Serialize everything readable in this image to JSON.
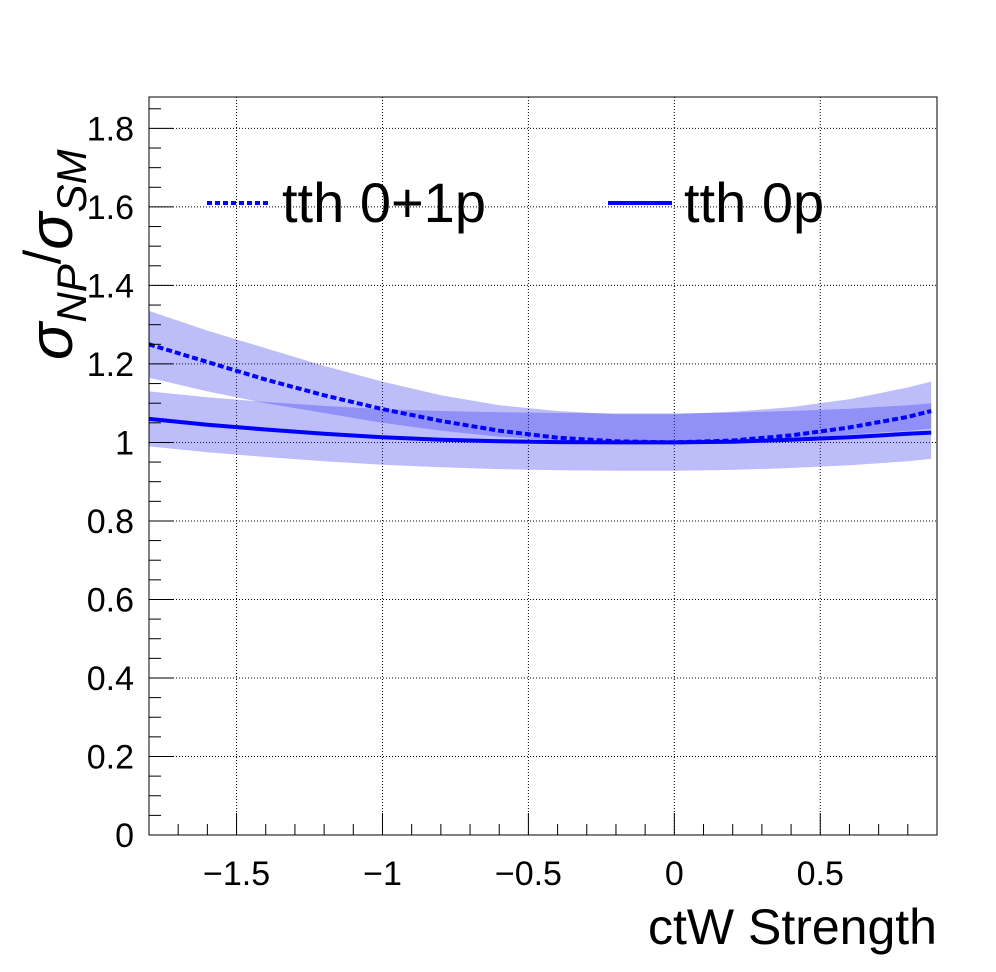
{
  "chart_data": {
    "type": "line",
    "xlabel": "ctW Strength",
    "ylabel": {
      "main": "σ",
      "sub1": "NP",
      "slash": "/",
      "main2": "σ",
      "sub2": "SM"
    },
    "xlim": [
      -1.8,
      0.9
    ],
    "ylim": [
      0,
      1.88
    ],
    "x_ticks": [
      {
        "value": -1.5,
        "label": "−1.5"
      },
      {
        "value": -1.0,
        "label": "−1"
      },
      {
        "value": -0.5,
        "label": "−0.5"
      },
      {
        "value": 0.0,
        "label": "0"
      },
      {
        "value": 0.5,
        "label": "0.5"
      }
    ],
    "y_ticks": [
      {
        "value": 0.0,
        "label": "0"
      },
      {
        "value": 0.2,
        "label": "0.2"
      },
      {
        "value": 0.4,
        "label": "0.4"
      },
      {
        "value": 0.6,
        "label": "0.6"
      },
      {
        "value": 0.8,
        "label": "0.8"
      },
      {
        "value": 1.0,
        "label": "1"
      },
      {
        "value": 1.2,
        "label": "1.2"
      },
      {
        "value": 1.4,
        "label": "1.4"
      },
      {
        "value": 1.6,
        "label": "1.6"
      },
      {
        "value": 1.8,
        "label": "1.8"
      }
    ],
    "grid": true,
    "legend_position": "top",
    "series": [
      {
        "name": "tth 0+1p",
        "style": "dashed",
        "color": "#0000ff",
        "x": [
          -1.8,
          -1.6,
          -1.4,
          -1.2,
          -1.0,
          -0.8,
          -0.6,
          -0.4,
          -0.2,
          0.0,
          0.2,
          0.4,
          0.6,
          0.8,
          0.88
        ],
        "y": [
          1.25,
          1.205,
          1.16,
          1.12,
          1.085,
          1.055,
          1.03,
          1.012,
          1.003,
          1.0,
          1.005,
          1.018,
          1.038,
          1.065,
          1.08
        ],
        "band_lower": [
          1.165,
          1.13,
          1.1,
          1.075,
          1.05,
          1.03,
          1.015,
          1.005,
          1.0,
          1.0,
          1.003,
          1.01,
          1.02,
          1.03,
          1.035
        ],
        "band_upper": [
          1.335,
          1.285,
          1.24,
          1.195,
          1.155,
          1.12,
          1.095,
          1.08,
          1.072,
          1.072,
          1.078,
          1.09,
          1.11,
          1.14,
          1.155
        ]
      },
      {
        "name": "tth 0p",
        "style": "solid",
        "color": "#0000ff",
        "x": [
          -1.8,
          -1.6,
          -1.4,
          -1.2,
          -1.0,
          -0.8,
          -0.6,
          -0.4,
          -0.2,
          0.0,
          0.2,
          0.4,
          0.6,
          0.8,
          0.88
        ],
        "y": [
          1.06,
          1.045,
          1.033,
          1.022,
          1.013,
          1.007,
          1.003,
          1.001,
          1.0,
          1.0,
          1.002,
          1.007,
          1.013,
          1.022,
          1.025
        ],
        "band_lower": [
          0.99,
          0.975,
          0.963,
          0.952,
          0.943,
          0.937,
          0.932,
          0.929,
          0.928,
          0.928,
          0.93,
          0.935,
          0.942,
          0.952,
          0.958
        ],
        "band_upper": [
          1.13,
          1.115,
          1.103,
          1.093,
          1.085,
          1.08,
          1.077,
          1.075,
          1.074,
          1.074,
          1.076,
          1.08,
          1.086,
          1.095,
          1.1
        ]
      }
    ]
  }
}
